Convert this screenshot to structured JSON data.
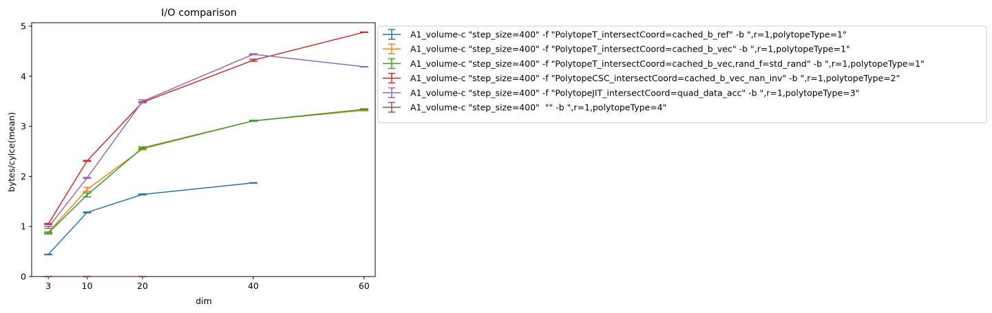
{
  "chart_data": {
    "type": "line",
    "title": "I/O comparison",
    "xlabel": "dim",
    "ylabel": "bytes/cylce(mean)",
    "x": [
      3,
      10,
      20,
      40,
      60
    ],
    "xticks": [
      "3",
      "10",
      "20",
      "40",
      "60"
    ],
    "yticks": [
      "0",
      "1",
      "2",
      "3",
      "4",
      "5"
    ],
    "xlim": [
      0,
      62
    ],
    "ylim": [
      0,
      5.07
    ],
    "grid": false,
    "legend_position": "outside-right-top",
    "error_bars": true,
    "series": [
      {
        "name": "A1_volume-c \"step_size=400\" -f \"PolytopeT_intersectCoord=cached_b_ref\" -b \",r=1,polytopeType=1\"",
        "color": "#1f77b4",
        "x": [
          3,
          10,
          20,
          40
        ],
        "values": [
          0.44,
          1.28,
          1.64,
          1.87
        ],
        "errors": [
          0.005,
          0.01,
          0.01,
          0.005
        ]
      },
      {
        "name": "A1_volume-c \"step_size=400\" -f \"PolytopeT_intersectCoord=cached_b_vec\" -b \",r=1,polytopeType=1\"",
        "color": "#ff7f0e",
        "x": [
          3,
          10,
          20,
          40,
          60
        ],
        "values": [
          0.88,
          1.74,
          2.55,
          3.11,
          3.32
        ],
        "errors": [
          0.01,
          0.04,
          0.02,
          0.01,
          0.01
        ]
      },
      {
        "name": "A1_volume-c \"step_size=400\" -f \"PolytopeT_intersectCoord=cached_b_vec,rand_f=std_rand\" -b \",r=1,polytopeType=1\"",
        "color": "#2ca02c",
        "x": [
          3,
          10,
          20,
          40,
          60
        ],
        "values": [
          0.87,
          1.63,
          2.57,
          3.11,
          3.34
        ],
        "errors": [
          0.02,
          0.04,
          0.02,
          0.01,
          0.01
        ]
      },
      {
        "name": "A1_volume-c \"step_size=400\" -f \"PolytopeCSC_intersectCoord=cached_b_vec_nan_inv\" -b \",r=1,polytopeType=2\"",
        "color": "#d62728",
        "x": [
          3,
          10,
          20,
          40,
          60
        ],
        "values": [
          1.05,
          2.31,
          3.48,
          4.32,
          4.88
        ],
        "errors": [
          0.01,
          0.01,
          0.01,
          0.02,
          0.005
        ]
      },
      {
        "name": "A1_volume-c \"step_size=400\" -f \"PolytopeJIT_intersectCoord=quad_data_acc\" -b \",r=1,polytopeType=3\"",
        "color": "#9467bd",
        "x": [
          3,
          10,
          20,
          40,
          60
        ],
        "values": [
          0.98,
          1.97,
          3.5,
          4.44,
          4.19
        ],
        "errors": [
          0.02,
          0.01,
          0.03,
          0.01,
          0.005
        ]
      },
      {
        "name": "A1_volume-c \"step_size=400\"  \"\" -b \",r=1,polytopeType=4\"",
        "color": "#8c564b",
        "x": [
          3,
          10,
          20
        ],
        "values": [
          0.0,
          0.0,
          0.0
        ],
        "errors": [
          0.005,
          0.005,
          0.005
        ]
      }
    ]
  }
}
